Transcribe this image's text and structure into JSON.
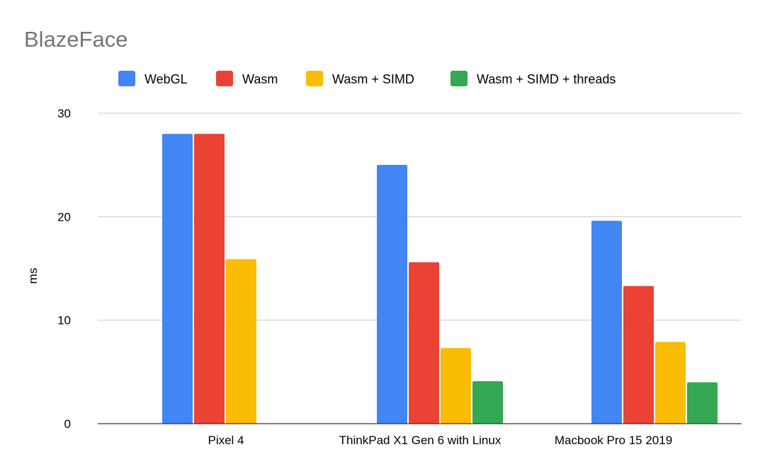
{
  "chart_data": {
    "type": "bar",
    "title": "BlazeFace",
    "xlabel": "",
    "ylabel": "ms",
    "ylim": [
      0,
      30
    ],
    "yticks": [
      0,
      10,
      20,
      30
    ],
    "grid": true,
    "legend_position": "top",
    "categories": [
      "Pixel 4",
      "ThinkPad X1 Gen 6 with Linux",
      "Macbook Pro 15 2019"
    ],
    "series": [
      {
        "name": "WebGL",
        "color": "#4285F4",
        "values": [
          28,
          25,
          19.6
        ]
      },
      {
        "name": "Wasm",
        "color": "#EA4335",
        "values": [
          28,
          15.6,
          13.3
        ]
      },
      {
        "name": "Wasm + SIMD",
        "color": "#FBBC04",
        "values": [
          15.9,
          7.3,
          7.9
        ]
      },
      {
        "name": "Wasm + SIMD + threads",
        "color": "#34A853",
        "values": [
          null,
          4.1,
          4.0
        ]
      }
    ],
    "colors": {
      "title": "#757575",
      "text": "#000000",
      "grid": "#cccccc",
      "axis": "#333333"
    }
  }
}
